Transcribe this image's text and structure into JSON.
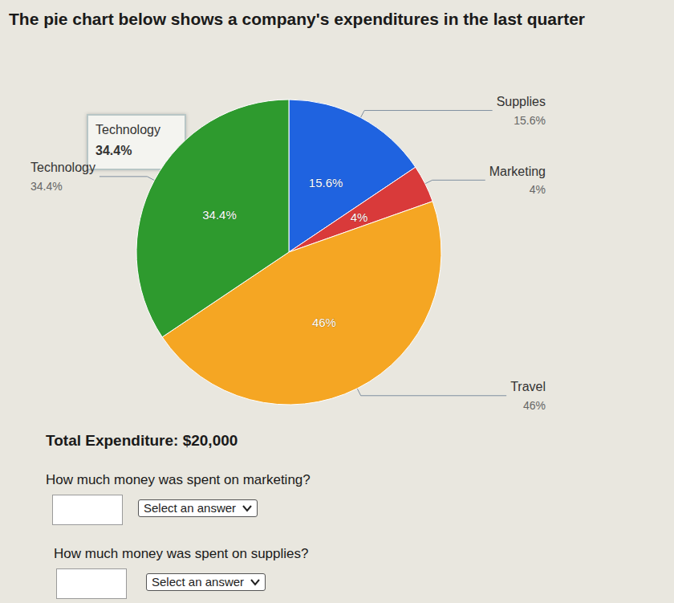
{
  "chart_data": {
    "type": "pie",
    "title": "The pie chart below shows a company's expenditures in the last quarter",
    "categories": [
      "Supplies",
      "Marketing",
      "Travel",
      "Technology"
    ],
    "values": [
      15.6,
      4,
      46,
      34.4
    ],
    "value_labels": [
      "15.6%",
      "4%",
      "46%",
      "34.4%"
    ],
    "colors": [
      "#1f63e0",
      "#d93a3a",
      "#f5a623",
      "#2e9a2e"
    ],
    "data_labels": true,
    "annotations": [
      {
        "text": "Technology",
        "value_label": "34.4%"
      }
    ]
  },
  "total": "Total Expenditure: $20,000",
  "questions": [
    {
      "text": "How much money was spent on marketing?",
      "answer": "Select an answer"
    },
    {
      "text": "How much money was spent on supplies?",
      "answer": "Select an answer"
    }
  ]
}
